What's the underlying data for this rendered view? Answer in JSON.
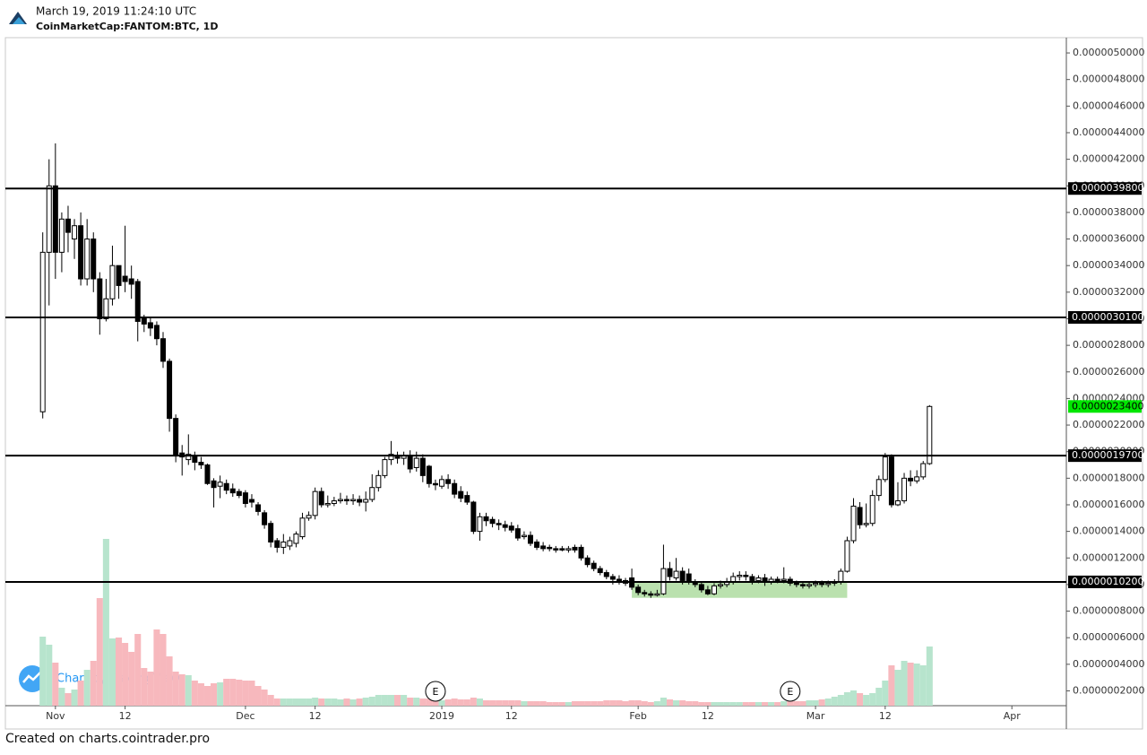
{
  "chart_data": {
    "type": "candlestick",
    "timestamp": "March 19, 2019 11:24:10 UTC",
    "title": "CoinMarketCap:FANTOM:BTC, 1D",
    "watermark": "Chart by TradingView",
    "footer": "Created on charts.cointrader.pro",
    "up_color": "#ffffff",
    "down_color": "#000000",
    "volume_up_color": "#b7e4cd",
    "volume_down_color": "#f7b8bd",
    "xlim": [
      -7.9,
      159.6
    ],
    "ylim": [
      8.85e-08,
      5.115e-06
    ],
    "xticks": [
      {
        "value": 0,
        "label": "Nov"
      },
      {
        "value": 11,
        "label": "12"
      },
      {
        "value": 30,
        "label": "Dec"
      },
      {
        "value": 41,
        "label": "12"
      },
      {
        "value": 61,
        "label": "2019"
      },
      {
        "value": 72,
        "label": "12"
      },
      {
        "value": 92,
        "label": "Feb"
      },
      {
        "value": 103,
        "label": "12"
      },
      {
        "value": 120,
        "label": "Mar"
      },
      {
        "value": 131,
        "label": "12"
      },
      {
        "value": 151,
        "label": "Apr"
      }
    ],
    "yticks": [
      {
        "value": 2e-07,
        "label": "0.0000002000"
      },
      {
        "value": 4e-07,
        "label": "0.0000004000"
      },
      {
        "value": 6e-07,
        "label": "0.0000006000"
      },
      {
        "value": 8e-07,
        "label": "0.0000008000"
      },
      {
        "value": 1e-06,
        "label": "0.0000010000"
      },
      {
        "value": 1.2e-06,
        "label": "0.0000012000"
      },
      {
        "value": 1.4e-06,
        "label": "0.0000014000"
      },
      {
        "value": 1.6e-06,
        "label": "0.0000016000"
      },
      {
        "value": 1.8e-06,
        "label": "0.0000018000"
      },
      {
        "value": 2e-06,
        "label": "0.0000020000"
      },
      {
        "value": 2.2e-06,
        "label": "0.0000022000"
      },
      {
        "value": 2.4e-06,
        "label": "0.0000024000"
      },
      {
        "value": 2.6e-06,
        "label": "0.0000026000"
      },
      {
        "value": 2.8e-06,
        "label": "0.0000028000"
      },
      {
        "value": 3e-06,
        "label": "0.0000030000"
      },
      {
        "value": 3.2e-06,
        "label": "0.0000032000"
      },
      {
        "value": 3.4e-06,
        "label": "0.0000034000"
      },
      {
        "value": 3.6e-06,
        "label": "0.0000036000"
      },
      {
        "value": 3.8e-06,
        "label": "0.0000038000"
      },
      {
        "value": 4e-06,
        "label": "0.0000040000"
      },
      {
        "value": 4.2e-06,
        "label": "0.0000042000"
      },
      {
        "value": 4.4e-06,
        "label": "0.0000044000"
      },
      {
        "value": 4.6e-06,
        "label": "0.0000046000"
      },
      {
        "value": 4.8e-06,
        "label": "0.0000048000"
      },
      {
        "value": 5e-06,
        "label": "0.0000050000"
      }
    ],
    "levels": [
      {
        "value": 3.98e-06,
        "label": "0.0000039800"
      },
      {
        "value": 3.01e-06,
        "label": "0.0000030100"
      },
      {
        "value": 1.97e-06,
        "label": "0.0000019700"
      },
      {
        "value": 1.02e-06,
        "label": "0.0000010200"
      }
    ],
    "level_color": "#000000",
    "last_price": {
      "value": 2.34e-06,
      "label": "0.0000023400",
      "color": "#00e600"
    },
    "highlight": {
      "xlim": [
        91,
        125
      ],
      "ylim": [
        9e-07,
        1.025e-06
      ],
      "color": "#a9d99a"
    },
    "events": [
      {
        "x": 60,
        "label": "E"
      },
      {
        "x": 116,
        "label": "E"
      }
    ],
    "x": [
      -2,
      -1,
      0,
      1,
      2,
      3,
      4,
      5,
      6,
      7,
      8,
      9,
      10,
      11,
      12,
      13,
      14,
      15,
      16,
      17,
      18,
      19,
      20,
      21,
      22,
      23,
      24,
      25,
      26,
      27,
      28,
      29,
      30,
      31,
      32,
      33,
      34,
      35,
      36,
      37,
      38,
      39,
      40,
      41,
      42,
      43,
      44,
      45,
      46,
      47,
      48,
      49,
      50,
      51,
      52,
      53,
      54,
      55,
      56,
      57,
      58,
      59,
      60,
      61,
      62,
      63,
      64,
      65,
      66,
      67,
      68,
      69,
      70,
      71,
      72,
      73,
      74,
      75,
      76,
      77,
      78,
      79,
      80,
      81,
      82,
      83,
      84,
      85,
      86,
      87,
      88,
      89,
      90,
      91,
      92,
      93,
      94,
      95,
      96,
      97,
      98,
      99,
      100,
      101,
      102,
      103,
      104,
      105,
      106,
      107,
      108,
      109,
      110,
      111,
      112,
      113,
      114,
      115,
      116,
      117,
      118,
      119,
      120,
      121,
      122,
      123,
      124,
      125,
      126,
      127,
      128,
      129,
      130,
      131,
      132,
      133,
      134,
      135,
      136,
      137,
      138
    ],
    "open": [
      2.3e-06,
      3.5e-06,
      4e-06,
      3.5e-06,
      3.75e-06,
      3.6e-06,
      3.7e-06,
      3.3e-06,
      3.6e-06,
      3.3e-06,
      3e-06,
      3.15e-06,
      3.4e-06,
      3.32e-06,
      3.3e-06,
      3.28e-06,
      3e-06,
      2.97e-06,
      2.95e-06,
      2.85e-06,
      2.68e-06,
      2.25e-06,
      1.99e-06,
      1.94e-06,
      1.97e-06,
      1.92e-06,
      1.9e-06,
      1.78e-06,
      1.74e-06,
      1.76e-06,
      1.72e-06,
      1.7e-06,
      1.69e-06,
      1.64e-06,
      1.6e-06,
      1.54e-06,
      1.46e-06,
      1.33e-06,
      1.28e-06,
      1.29e-06,
      1.31e-06,
      1.36e-06,
      1.5e-06,
      1.52e-06,
      1.7e-06,
      1.6e-06,
      1.61e-06,
      1.63e-06,
      1.64e-06,
      1.63e-06,
      1.64e-06,
      1.62e-06,
      1.64e-06,
      1.73e-06,
      1.82e-06,
      1.94e-06,
      1.96e-06,
      1.95e-06,
      1.97e-06,
      1.88e-06,
      1.95e-06,
      1.89e-06,
      1.76e-06,
      1.74e-06,
      1.79e-06,
      1.76e-06,
      1.7e-06,
      1.67e-06,
      1.62e-06,
      1.4e-06,
      1.51e-06,
      1.49e-06,
      1.46e-06,
      1.45e-06,
      1.44e-06,
      1.42e-06,
      1.36e-06,
      1.37e-06,
      1.32e-06,
      1.29e-06,
      1.28e-06,
      1.27e-06,
      1.27e-06,
      1.26e-06,
      1.28e-06,
      1.28e-06,
      1.2e-06,
      1.16e-06,
      1.12e-06,
      1.09e-06,
      1.06e-06,
      1.04e-06,
      1.03e-06,
      1.05e-06,
      9.8e-07,
      9.4e-07,
      9.3e-07,
      9.2e-07,
      9.3e-07,
      1.12e-06,
      1.05e-06,
      1.1e-06,
      1.08e-06,
      1.02e-06,
      1e-06,
      9.6e-07,
      9.3e-07,
      9.9e-07,
      1e-06,
      1.02e-06,
      1.06e-06,
      1.07e-06,
      1.06e-06,
      1.03e-06,
      1.05e-06,
      1.02e-06,
      1.04e-06,
      1.03e-06,
      1.04e-06,
      1.01e-06,
      1e-06,
      9.9e-07,
      1e-06,
      1.01e-06,
      1e-06,
      1.01e-06,
      1.02e-06,
      1.1e-06,
      1.33e-06,
      1.58e-06,
      1.45e-06,
      1.46e-06,
      1.67e-06,
      1.79e-06,
      1.96e-06,
      1.6e-06,
      1.63e-06,
      1.8e-06,
      1.78e-06,
      1.81e-06,
      1.91e-06
    ],
    "high": [
      3.65e-06,
      4.2e-06,
      4.32e-06,
      3.8e-06,
      3.85e-06,
      3.75e-06,
      3.8e-06,
      3.75e-06,
      3.65e-06,
      3.35e-06,
      3.3e-06,
      3.55e-06,
      3.4e-06,
      3.7e-06,
      3.4e-06,
      3.3e-06,
      3.03e-06,
      3.01e-06,
      2.98e-06,
      2.9e-06,
      2.7e-06,
      2.28e-06,
      2.05e-06,
      2.13e-06,
      2e-06,
      1.96e-06,
      1.91e-06,
      1.8e-06,
      1.82e-06,
      1.79e-06,
      1.76e-06,
      1.72e-06,
      1.71e-06,
      1.68e-06,
      1.62e-06,
      1.56e-06,
      1.48e-06,
      1.35e-06,
      1.38e-06,
      1.36e-06,
      1.4e-06,
      1.54e-06,
      1.55e-06,
      1.73e-06,
      1.73e-06,
      1.67e-06,
      1.66e-06,
      1.69e-06,
      1.67e-06,
      1.68e-06,
      1.67e-06,
      1.7e-06,
      1.83e-06,
      1.86e-06,
      1.96e-06,
      2.08e-06,
      2e-06,
      2e-06,
      2.01e-06,
      2e-06,
      1.98e-06,
      1.9e-06,
      1.79e-06,
      1.82e-06,
      1.83e-06,
      1.79e-06,
      1.74e-06,
      1.7e-06,
      1.63e-06,
      1.54e-06,
      1.54e-06,
      1.51e-06,
      1.49e-06,
      1.48e-06,
      1.47e-06,
      1.45e-06,
      1.4e-06,
      1.4e-06,
      1.34e-06,
      1.32e-06,
      1.3e-06,
      1.29e-06,
      1.29e-06,
      1.29e-06,
      1.3e-06,
      1.3e-06,
      1.22e-06,
      1.18e-06,
      1.14e-06,
      1.11e-06,
      1.08e-06,
      1.07e-06,
      1.05e-06,
      1.12e-06,
      1e-06,
      9.6e-07,
      9.5e-07,
      9.6e-07,
      1.3e-06,
      1.17e-06,
      1.2e-06,
      1.13e-06,
      1.12e-06,
      1.04e-06,
      1.02e-06,
      9.9e-07,
      1.01e-06,
      1.03e-06,
      1.05e-06,
      1.09e-06,
      1.1e-06,
      1.1e-06,
      1.08e-06,
      1.07e-06,
      1.08e-06,
      1.06e-06,
      1.06e-06,
      1.13e-06,
      1.06e-06,
      1.03e-06,
      1.02e-06,
      1.02e-06,
      1.03e-06,
      1.03e-06,
      1.03e-06,
      1.04e-06,
      1.12e-06,
      1.36e-06,
      1.65e-06,
      1.62e-06,
      1.61e-06,
      1.71e-06,
      1.82e-06,
      1.99e-06,
      1.98e-06,
      1.77e-06,
      1.84e-06,
      1.86e-06,
      1.86e-06,
      1.93e-06,
      2.35e-06
    ],
    "low": [
      2.25e-06,
      3.1e-06,
      3.3e-06,
      3.35e-06,
      3.5e-06,
      3.45e-06,
      3.25e-06,
      3.25e-06,
      3.2e-06,
      2.88e-06,
      2.98e-06,
      3.1e-06,
      3.15e-06,
      3.2e-06,
      3.15e-06,
      2.83e-06,
      2.9e-06,
      2.87e-06,
      2.8e-06,
      2.63e-06,
      2.15e-06,
      1.92e-06,
      1.82e-06,
      1.9e-06,
      1.86e-06,
      1.87e-06,
      1.75e-06,
      1.58e-06,
      1.65e-06,
      1.68e-06,
      1.66e-06,
      1.65e-06,
      1.58e-06,
      1.58e-06,
      1.52e-06,
      1.42e-06,
      1.28e-06,
      1.24e-06,
      1.23e-06,
      1.26e-06,
      1.28e-06,
      1.34e-06,
      1.48e-06,
      1.49e-06,
      1.58e-06,
      1.58e-06,
      1.59e-06,
      1.61e-06,
      1.6e-06,
      1.6e-06,
      1.59e-06,
      1.55e-06,
      1.62e-06,
      1.7e-06,
      1.8e-06,
      1.9e-06,
      1.91e-06,
      1.9e-06,
      1.84e-06,
      1.85e-06,
      1.77e-06,
      1.73e-06,
      1.71e-06,
      1.72e-06,
      1.72e-06,
      1.65e-06,
      1.62e-06,
      1.6e-06,
      1.38e-06,
      1.33e-06,
      1.44e-06,
      1.43e-06,
      1.41e-06,
      1.4e-06,
      1.39e-06,
      1.33e-06,
      1.34e-06,
      1.29e-06,
      1.26e-06,
      1.25e-06,
      1.25e-06,
      1.24e-06,
      1.25e-06,
      1.24e-06,
      1.24e-06,
      1.18e-06,
      1.13e-06,
      1.1e-06,
      1.07e-06,
      1.04e-06,
      1e-06,
      1e-06,
      9.9e-07,
      9.6e-07,
      9.2e-07,
      9.1e-07,
      9e-07,
      9.1e-07,
      9.2e-07,
      1.03e-06,
      1.03e-06,
      1e-06,
      1e-06,
      9.8e-07,
      9.4e-07,
      9.2e-07,
      9.2e-07,
      9.7e-07,
      9.8e-07,
      1e-06,
      1.03e-06,
      1.03e-06,
      1e-06,
      1.01e-06,
      9.9e-07,
      1e-06,
      1.01e-06,
      1.01e-06,
      9.9e-07,
      9.8e-07,
      9.7e-07,
      9.7e-07,
      9.8e-07,
      9.8e-07,
      9.8e-07,
      9.9e-07,
      1e-06,
      1.09e-06,
      1.31e-06,
      1.42e-06,
      1.43e-06,
      1.44e-06,
      1.63e-06,
      1.77e-06,
      1.58e-06,
      1.59e-06,
      1.61e-06,
      1.74e-06,
      1.76e-06,
      1.79e-06,
      1.9e-06
    ],
    "close": [
      3.5e-06,
      4e-06,
      3.5e-06,
      3.75e-06,
      3.65e-06,
      3.7e-06,
      3.3e-06,
      3.6e-06,
      3.3e-06,
      3e-06,
      3.15e-06,
      3.4e-06,
      3.25e-06,
      3.28e-06,
      3.26e-06,
      2.98e-06,
      2.96e-06,
      2.93e-06,
      2.85e-06,
      2.68e-06,
      2.25e-06,
      1.97e-06,
      1.96e-06,
      1.98e-06,
      1.92e-06,
      1.9e-06,
      1.76e-06,
      1.73e-06,
      1.77e-06,
      1.71e-06,
      1.69e-06,
      1.67e-06,
      1.61e-06,
      1.62e-06,
      1.55e-06,
      1.45e-06,
      1.32e-06,
      1.28e-06,
      1.32e-06,
      1.33e-06,
      1.38e-06,
      1.5e-06,
      1.52e-06,
      1.7e-06,
      1.6e-06,
      1.61e-06,
      1.63e-06,
      1.64e-06,
      1.63e-06,
      1.64e-06,
      1.62e-06,
      1.64e-06,
      1.73e-06,
      1.82e-06,
      1.94e-06,
      1.98e-06,
      1.95e-06,
      1.97e-06,
      1.87e-06,
      1.95e-06,
      1.82e-06,
      1.76e-06,
      1.75e-06,
      1.79e-06,
      1.76e-06,
      1.68e-06,
      1.65e-06,
      1.62e-06,
      1.4e-06,
      1.51e-06,
      1.48e-06,
      1.46e-06,
      1.45e-06,
      1.43e-06,
      1.41e-06,
      1.35e-06,
      1.37e-06,
      1.31e-06,
      1.28e-06,
      1.27e-06,
      1.27e-06,
      1.26e-06,
      1.26e-06,
      1.27e-06,
      1.26e-06,
      1.2e-06,
      1.15e-06,
      1.12e-06,
      1.09e-06,
      1.06e-06,
      1.04e-06,
      1.03e-06,
      1.01e-06,
      9.8e-07,
      9.4e-07,
      9.3e-07,
      9.2e-07,
      9.3e-07,
      1.12e-06,
      1.06e-06,
      1.1e-06,
      1.03e-06,
      1.02e-06,
      1e-06,
      9.6e-07,
      9.3e-07,
      9.9e-07,
      1e-06,
      1.02e-06,
      1.06e-06,
      1.07e-06,
      1.06e-06,
      1.03e-06,
      1.05e-06,
      1.02e-06,
      1.04e-06,
      1.03e-06,
      1.04e-06,
      1.01e-06,
      1e-06,
      9.9e-07,
      1e-06,
      1.01e-06,
      1e-06,
      1.01e-06,
      1.02e-06,
      1.1e-06,
      1.33e-06,
      1.59e-06,
      1.45e-06,
      1.46e-06,
      1.67e-06,
      1.79e-06,
      1.96e-06,
      1.6e-06,
      1.63e-06,
      1.8e-06,
      1.78e-06,
      1.81e-06,
      1.91e-06,
      2.34e-06
    ],
    "volume": [
      77,
      68,
      48,
      20,
      14,
      18,
      28,
      40,
      50,
      120,
      186,
      75,
      76,
      70,
      60,
      80,
      42,
      38,
      85,
      80,
      55,
      38,
      35,
      34,
      28,
      25,
      22,
      25,
      26,
      30,
      30,
      29,
      28,
      28,
      22,
      18,
      12,
      8,
      8,
      8,
      8,
      8,
      8,
      9,
      8,
      8,
      8,
      7,
      8,
      7,
      8,
      9,
      10,
      12,
      12,
      12,
      12,
      12,
      9,
      9,
      8,
      8,
      6,
      6,
      7,
      8,
      7,
      7,
      9,
      8,
      6,
      6,
      6,
      6,
      6,
      6,
      5,
      5,
      5,
      5,
      4,
      4,
      4,
      4,
      5,
      5,
      5,
      5,
      5,
      6,
      6,
      6,
      5,
      6,
      6,
      5,
      4,
      5,
      9,
      7,
      6,
      6,
      5,
      5,
      4,
      4,
      4,
      4,
      4,
      4,
      4,
      4,
      4,
      4,
      4,
      4,
      4,
      5,
      5,
      5,
      5,
      6,
      6,
      7,
      8,
      10,
      12,
      15,
      17,
      14,
      12,
      14,
      20,
      28,
      45,
      40,
      50,
      48,
      47,
      45,
      66
    ]
  }
}
